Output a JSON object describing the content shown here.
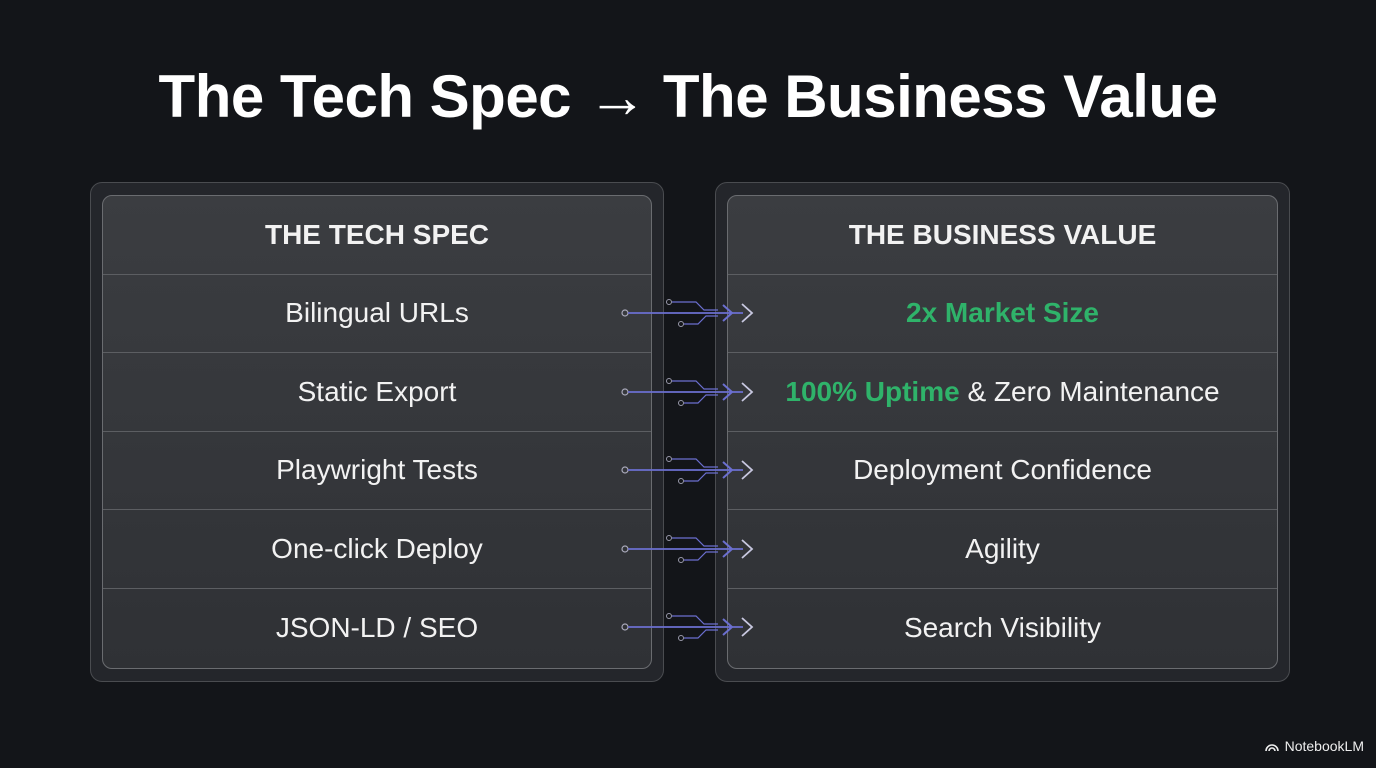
{
  "title": "The Tech Spec → The Business Value",
  "left": {
    "header": "THE TECH SPEC",
    "items": [
      "Bilingual URLs",
      "Static Export",
      "Playwright Tests",
      "One-click Deploy",
      "JSON-LD / SEO"
    ]
  },
  "right": {
    "header": "THE BUSINESS VALUE",
    "items": [
      {
        "highlight": "2x Market Size",
        "rest": ""
      },
      {
        "highlight": "100% Uptime",
        "rest": " & Zero Maintenance"
      },
      {
        "highlight": "",
        "rest": "Deployment Confidence"
      },
      {
        "highlight": "",
        "rest": "Agility"
      },
      {
        "highlight": "",
        "rest": "Search Visibility"
      }
    ]
  },
  "colors": {
    "highlight": "#2fb36a",
    "connector": "#6b6fd0",
    "background": "#131519"
  },
  "brand": {
    "name": "NotebookLM",
    "icon": "notebooklm-logo-icon"
  }
}
